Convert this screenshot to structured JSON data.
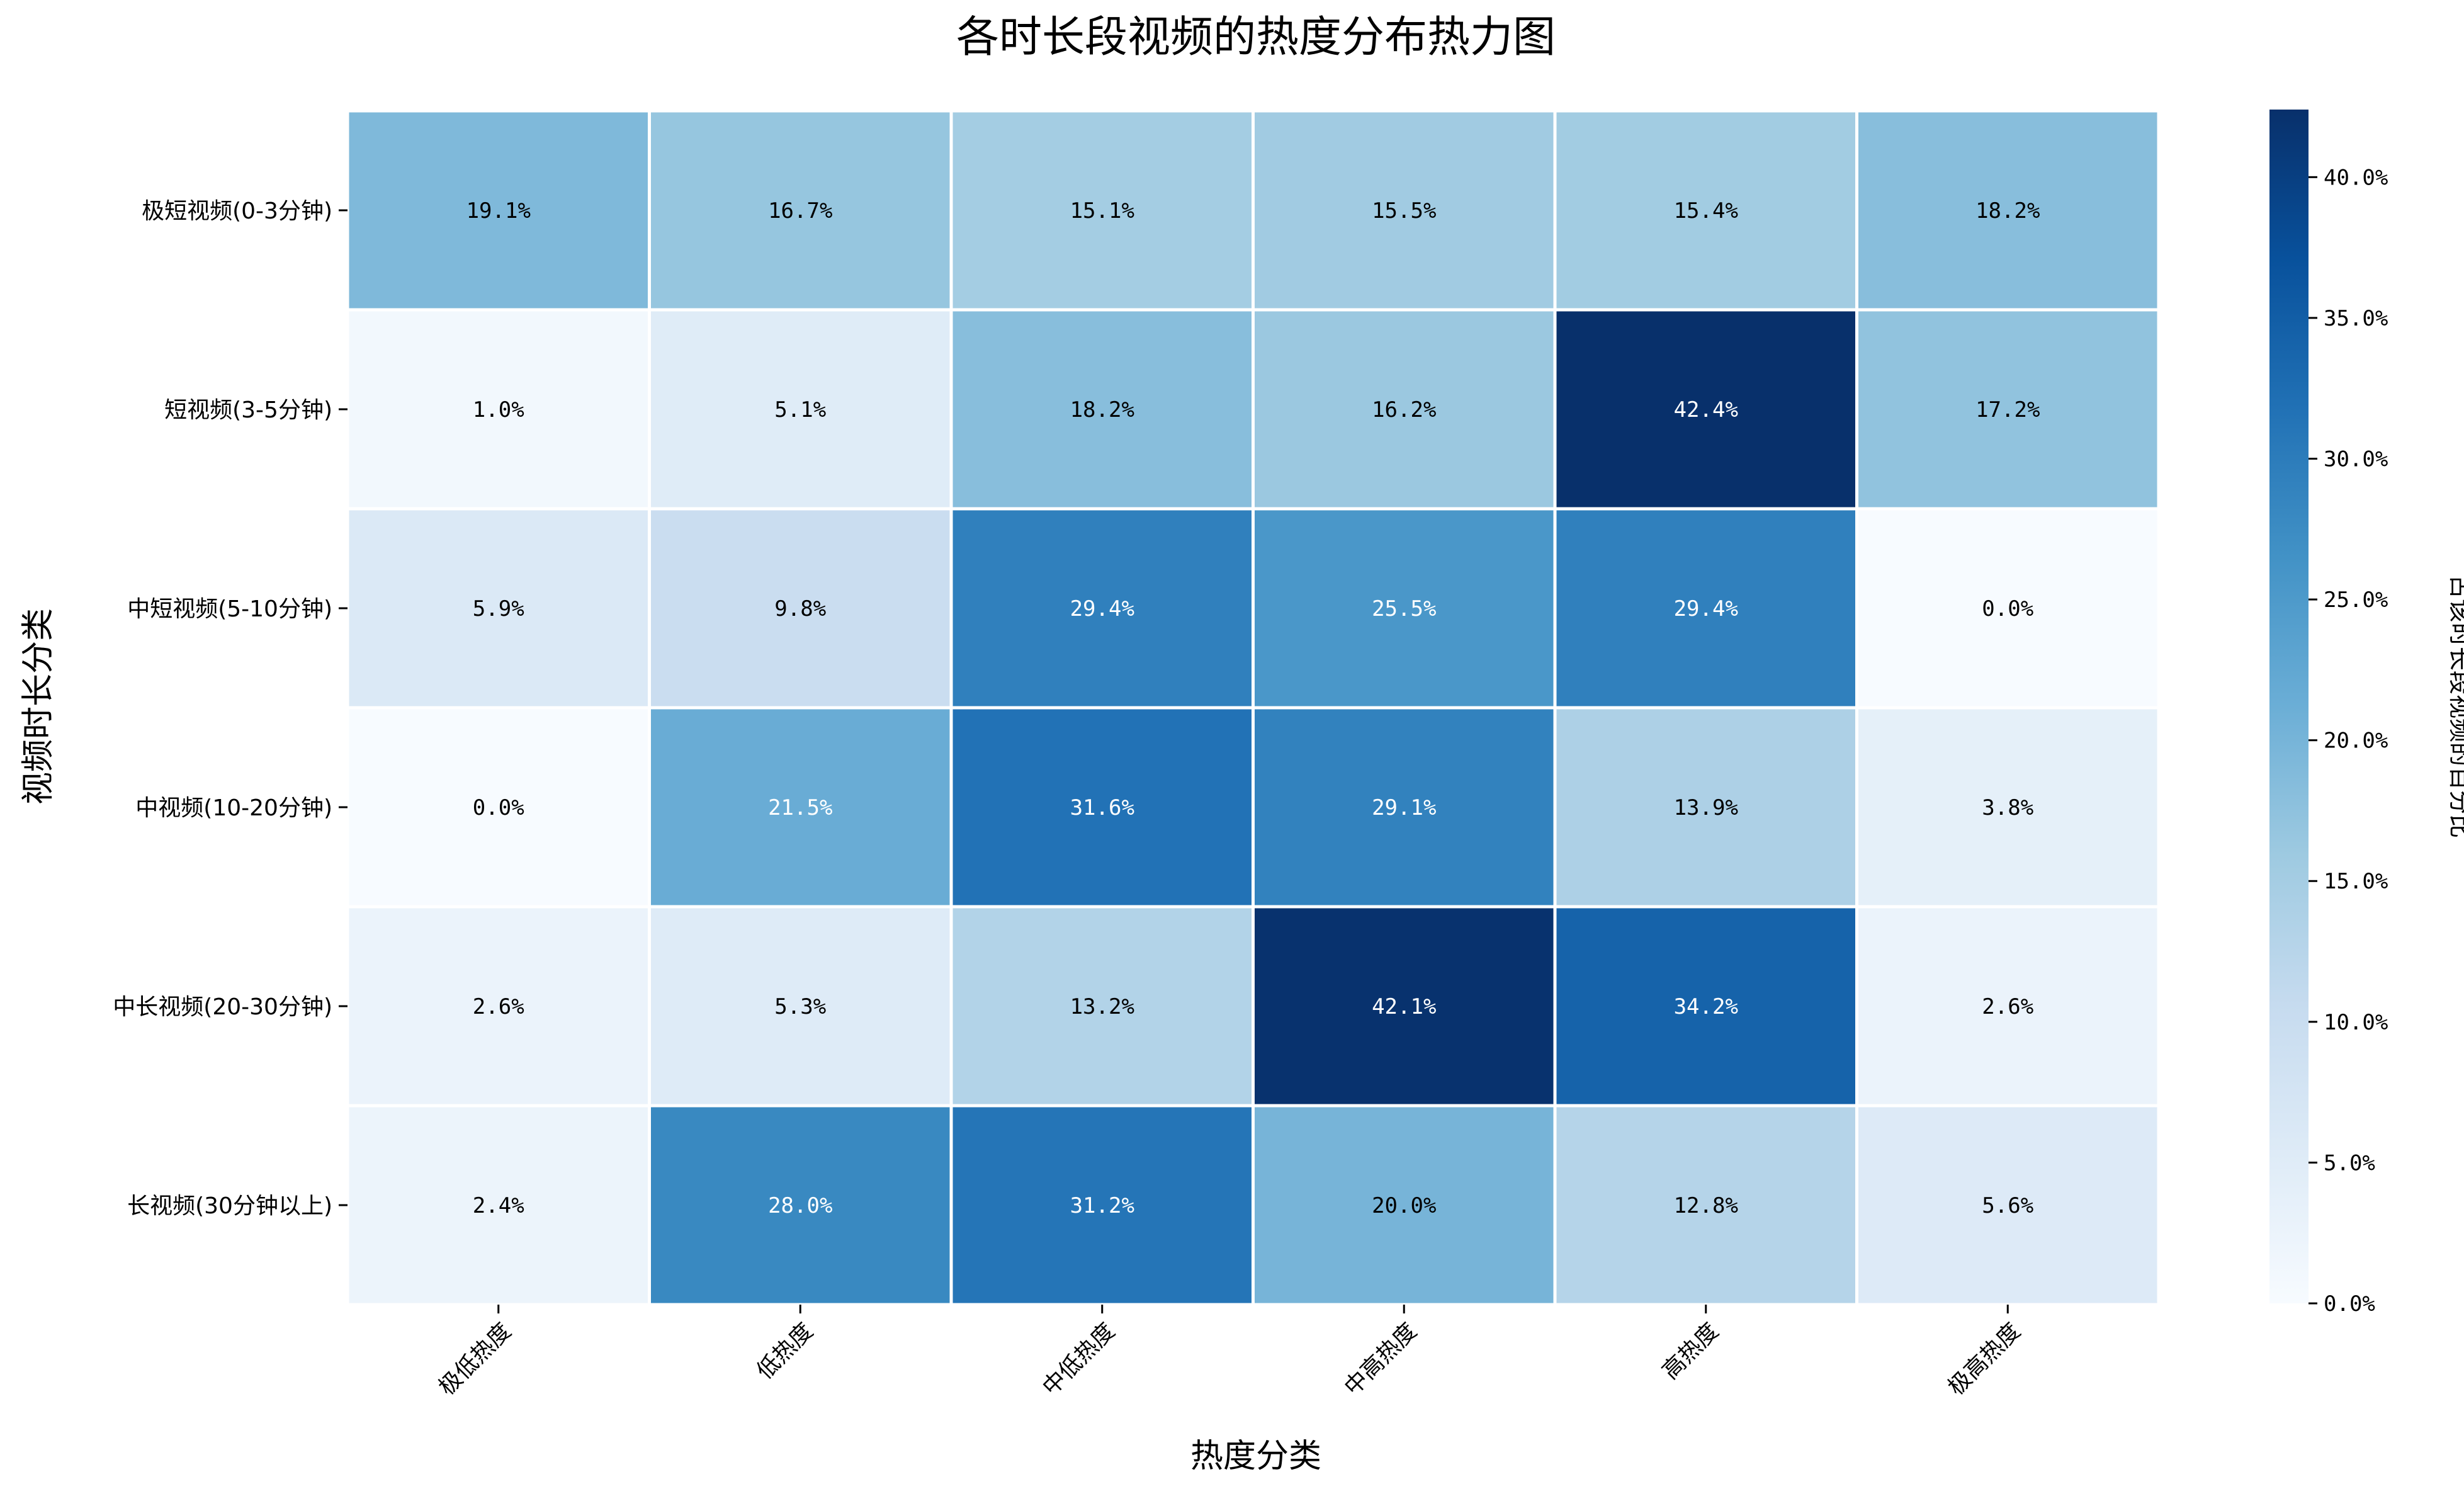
{
  "chart_data": {
    "type": "heatmap",
    "title": "各时长段视频的热度分布热力图",
    "xlabel": "热度分类",
    "ylabel": "视频时长分类",
    "colorbar_label": "占该时长段视频的百分比",
    "x_categories": [
      "极低热度",
      "低热度",
      "中低热度",
      "中高热度",
      "高热度",
      "极高热度"
    ],
    "y_categories": [
      "极短视频(0-3分钟)",
      "短视频(3-5分钟)",
      "中短视频(5-10分钟)",
      "中视频(10-20分钟)",
      "中长视频(20-30分钟)",
      "长视频(30分钟以上)"
    ],
    "values": [
      [
        19.1,
        16.7,
        15.1,
        15.5,
        15.4,
        18.2
      ],
      [
        1.0,
        5.1,
        18.2,
        16.2,
        42.4,
        17.2
      ],
      [
        5.9,
        9.8,
        29.4,
        25.5,
        29.4,
        0.0
      ],
      [
        0.0,
        21.5,
        31.6,
        29.1,
        13.9,
        3.8
      ],
      [
        2.6,
        5.3,
        13.2,
        42.1,
        34.2,
        2.6
      ],
      [
        2.4,
        28.0,
        31.2,
        20.0,
        12.8,
        5.6
      ]
    ],
    "value_format": "percent_1dp",
    "colormap": "Blues",
    "colormap_stops": [
      "#f7fbff",
      "#deebf7",
      "#c6dbef",
      "#9ecae1",
      "#6baed6",
      "#4292c6",
      "#2171b5",
      "#08519c",
      "#08306b"
    ],
    "vmin": 0.0,
    "vmax": 42.4,
    "colorbar_ticks": [
      0.0,
      5.0,
      10.0,
      15.0,
      20.0,
      25.0,
      30.0,
      35.0,
      40.0
    ],
    "grid": false
  }
}
